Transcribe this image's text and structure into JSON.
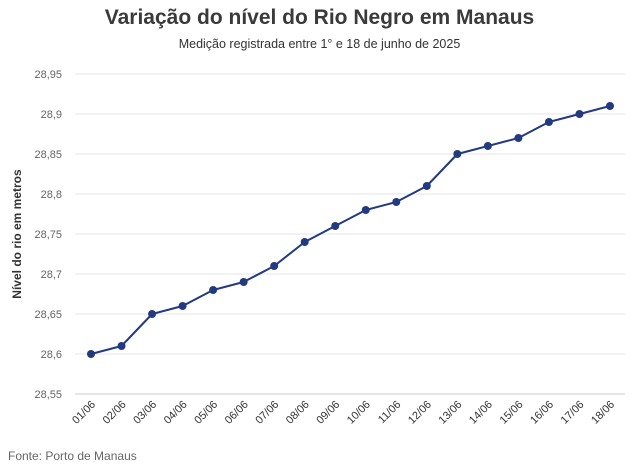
{
  "title": "Variação do nível do Rio Negro em Manaus",
  "subtitle": "Medição registrada entre 1° e 18 de junho de 2025",
  "source": "Fonte: Porto de Manaus",
  "colors": {
    "line": "#233a80",
    "grid": "#e6e6e6",
    "axis": "#cccccc"
  },
  "chart_data": {
    "type": "line",
    "title": "Variação do nível do Rio Negro em Manaus",
    "subtitle": "Medição registrada entre 1° e 18 de junho de 2025",
    "xlabel": "",
    "ylabel": "Nível do rio em metros",
    "categories": [
      "01/06",
      "02/06",
      "03/06",
      "04/06",
      "05/06",
      "06/06",
      "07/06",
      "08/06",
      "09/06",
      "10/06",
      "11/06",
      "12/06",
      "13/06",
      "14/06",
      "15/06",
      "16/06",
      "17/06",
      "18/06"
    ],
    "series": [
      {
        "values": [
          28.6,
          28.61,
          28.65,
          28.66,
          28.68,
          28.69,
          28.71,
          28.74,
          28.76,
          28.78,
          28.79,
          28.81,
          28.85,
          28.86,
          28.87,
          28.89,
          28.9,
          28.91
        ]
      }
    ],
    "ylim": [
      28.55,
      28.95
    ],
    "yticks": [
      28.55,
      28.6,
      28.65,
      28.7,
      28.75,
      28.8,
      28.85,
      28.9,
      28.95
    ],
    "ytick_labels": [
      "28,55",
      "28,6",
      "28,65",
      "28,7",
      "28,75",
      "28,8",
      "28,85",
      "28,9",
      "28,95"
    ],
    "grid": true,
    "legend": "none"
  }
}
